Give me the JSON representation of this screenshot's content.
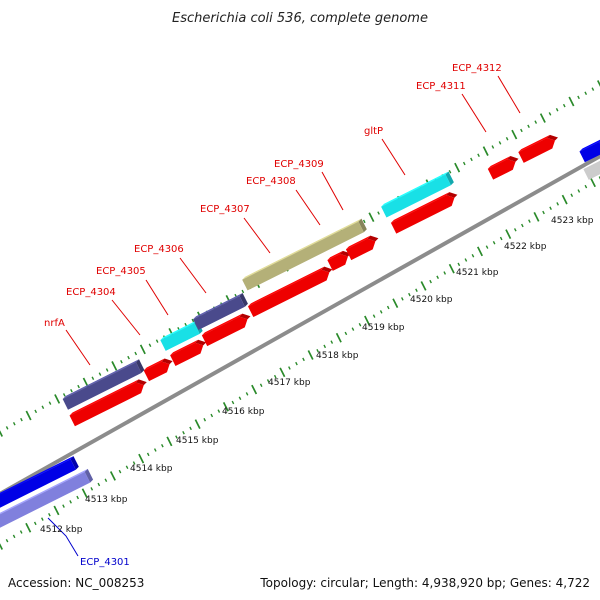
{
  "title": "Escherichia coli 536, complete genome",
  "footer": {
    "accession": "Accession: NC_008253",
    "topology": "Topology: circular; Length: 4,938,920 bp; Genes: 4,722"
  },
  "colors": {
    "backbone": "#8c8c8c",
    "tick": "#2a8a2a",
    "cds": "#ee0000",
    "purple": "#4a4a8c",
    "cyan": "#19e0e6",
    "olive": "#b4b078",
    "blue": "#0000e6",
    "lavender": "#8080dd",
    "label_fwd": "#e00000",
    "label_rev": "#0000cc"
  },
  "scale_ticks": [
    "4512 kbp",
    "4513 kbp",
    "4514 kbp",
    "4515 kbp",
    "4516 kbp",
    "4517 kbp",
    "4518 kbp",
    "4519 kbp",
    "4520 kbp",
    "4521 kbp",
    "4522 kbp",
    "4523 kbp"
  ],
  "gene_labels": [
    "nrfA",
    "ECP_4304",
    "ECP_4305",
    "ECP_4306",
    "ECP_4307",
    "ECP_4308",
    "ECP_4309",
    "gltP",
    "ECP_4311",
    "ECP_4312",
    "ECP_4301"
  ]
}
